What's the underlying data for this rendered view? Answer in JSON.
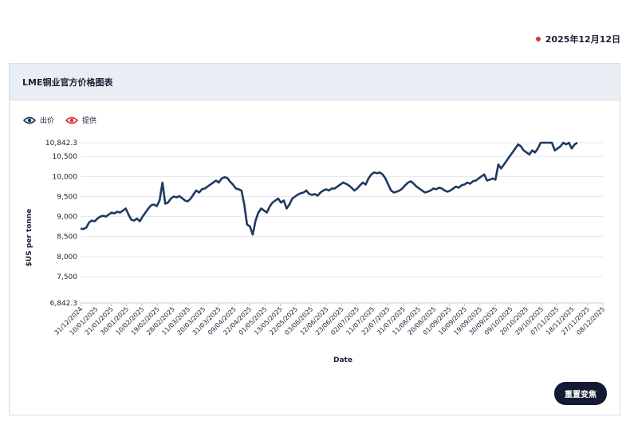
{
  "header": {
    "date": "2025年12月12日",
    "dot_color": "#d9363e"
  },
  "panel": {
    "title": "LME铜业官方价格图表"
  },
  "legend": [
    {
      "label": "出价",
      "icon": "eye-icon",
      "color": "#1e3a5f"
    },
    {
      "label": "提供",
      "icon": "eye-icon",
      "color": "#d9363e"
    }
  ],
  "button": {
    "reset_label": "重置变焦"
  },
  "chart_data": {
    "type": "line",
    "xlabel": "Date",
    "ylabel": "$US per tonne",
    "x_ticks": [
      "31/12/2024",
      "10/01/2025",
      "21/01/2025",
      "30/01/2025",
      "10/02/2025",
      "19/02/2025",
      "28/02/2025",
      "11/03/2025",
      "20/03/2025",
      "31/03/2025",
      "09/04/2025",
      "22/04/2025",
      "01/05/2025",
      "13/05/2025",
      "22/05/2025",
      "03/06/2025",
      "12/06/2025",
      "23/06/2025",
      "02/07/2025",
      "11/07/2025",
      "22/07/2025",
      "31/07/2025",
      "11/08/2025",
      "20/08/2025",
      "01/09/2025",
      "10/09/2025",
      "19/09/2025",
      "30/09/2025",
      "09/10/2025",
      "20/10/2025",
      "29/10/2025",
      "07/11/2025",
      "18/11/2025",
      "27/11/2025",
      "08/12/2025"
    ],
    "y_ticks": [
      "6,842.3",
      "7,500",
      "8,000",
      "8,500",
      "9,000",
      "9,500",
      "10,000",
      "10,500",
      "10,842.3"
    ],
    "y_tick_values": [
      6842.3,
      7500,
      8000,
      8500,
      9000,
      9500,
      10000,
      10500,
      10842.3
    ],
    "ylim": [
      6842.3,
      10842.3
    ],
    "series": [
      {
        "color": "#1e3a5f",
        "values": [
          8700,
          8690,
          8720,
          8850,
          8900,
          8880,
          8950,
          9000,
          9020,
          9000,
          9050,
          9100,
          9080,
          9120,
          9100,
          9150,
          9200,
          9050,
          8920,
          8900,
          8950,
          8880,
          9000,
          9100,
          9200,
          9280,
          9300,
          9260,
          9400,
          9850,
          9320,
          9350,
          9450,
          9500,
          9480,
          9510,
          9460,
          9400,
          9380,
          9450,
          9550,
          9650,
          9600,
          9680,
          9700,
          9750,
          9800,
          9850,
          9900,
          9850,
          9950,
          9980,
          9960,
          9870,
          9800,
          9700,
          9680,
          9650,
          9300,
          8800,
          8750,
          8550,
          8900,
          9100,
          9200,
          9150,
          9100,
          9250,
          9350,
          9400,
          9450,
          9350,
          9400,
          9200,
          9300,
          9450,
          9500,
          9550,
          9580,
          9600,
          9650,
          9560,
          9540,
          9560,
          9520,
          9600,
          9650,
          9680,
          9650,
          9700,
          9700,
          9750,
          9800,
          9850,
          9820,
          9780,
          9720,
          9650,
          9700,
          9780,
          9850,
          9800,
          9950,
          10050,
          10100,
          10080,
          10100,
          10050,
          9950,
          9800,
          9650,
          9600,
          9620,
          9650,
          9700,
          9780,
          9850,
          9880,
          9820,
          9750,
          9700,
          9650,
          9600,
          9620,
          9650,
          9700,
          9680,
          9720,
          9700,
          9650,
          9620,
          9650,
          9700,
          9750,
          9720,
          9780,
          9800,
          9850,
          9820,
          9880,
          9900,
          9950,
          10000,
          10050,
          9900,
          9920,
          9950,
          9920,
          10300,
          10200,
          10300,
          10400,
          10500,
          10600,
          10700,
          10800,
          10750,
          10650,
          10600,
          10550,
          10650,
          10600,
          10700,
          10842.3,
          10842.3,
          10842.3,
          10842.3,
          10842.3,
          10650,
          10700,
          10750,
          10842.3,
          10800,
          10842.3,
          10700,
          10800,
          10842.3
        ]
      }
    ],
    "grid": true,
    "legend_position": "top-left"
  }
}
